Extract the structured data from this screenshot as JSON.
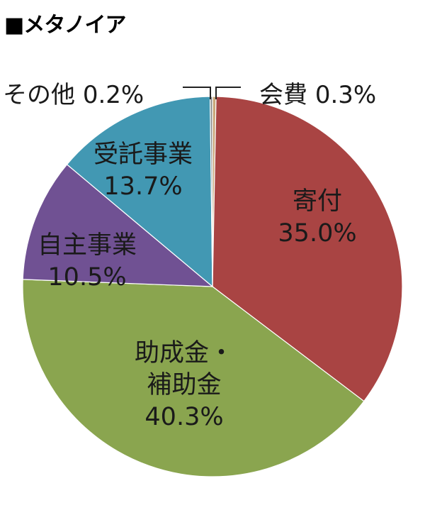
{
  "chart_data": {
    "type": "pie",
    "title": "■メタノイア",
    "slices": [
      {
        "label": "会費",
        "value": 0.3,
        "value_label": "0.3%",
        "color": "#c9a77a"
      },
      {
        "label": "寄付",
        "value": 35.0,
        "value_label": "35.0%",
        "color": "#a94443"
      },
      {
        "label": "助成金・補助金",
        "label_lines": [
          "助成金・",
          "補助金"
        ],
        "value": 40.3,
        "value_label": "40.3%",
        "color": "#8aa54f"
      },
      {
        "label": "自主事業",
        "value": 10.5,
        "value_label": "10.5%",
        "color": "#705193"
      },
      {
        "label": "受託事業",
        "value": 13.7,
        "value_label": "13.7%",
        "color": "#4298b3"
      },
      {
        "label": "その他",
        "value": 0.2,
        "value_label": "0.2%",
        "color": "#8a8a8a"
      }
    ],
    "start": "12 o'clock, clockwise",
    "legend": "none"
  }
}
